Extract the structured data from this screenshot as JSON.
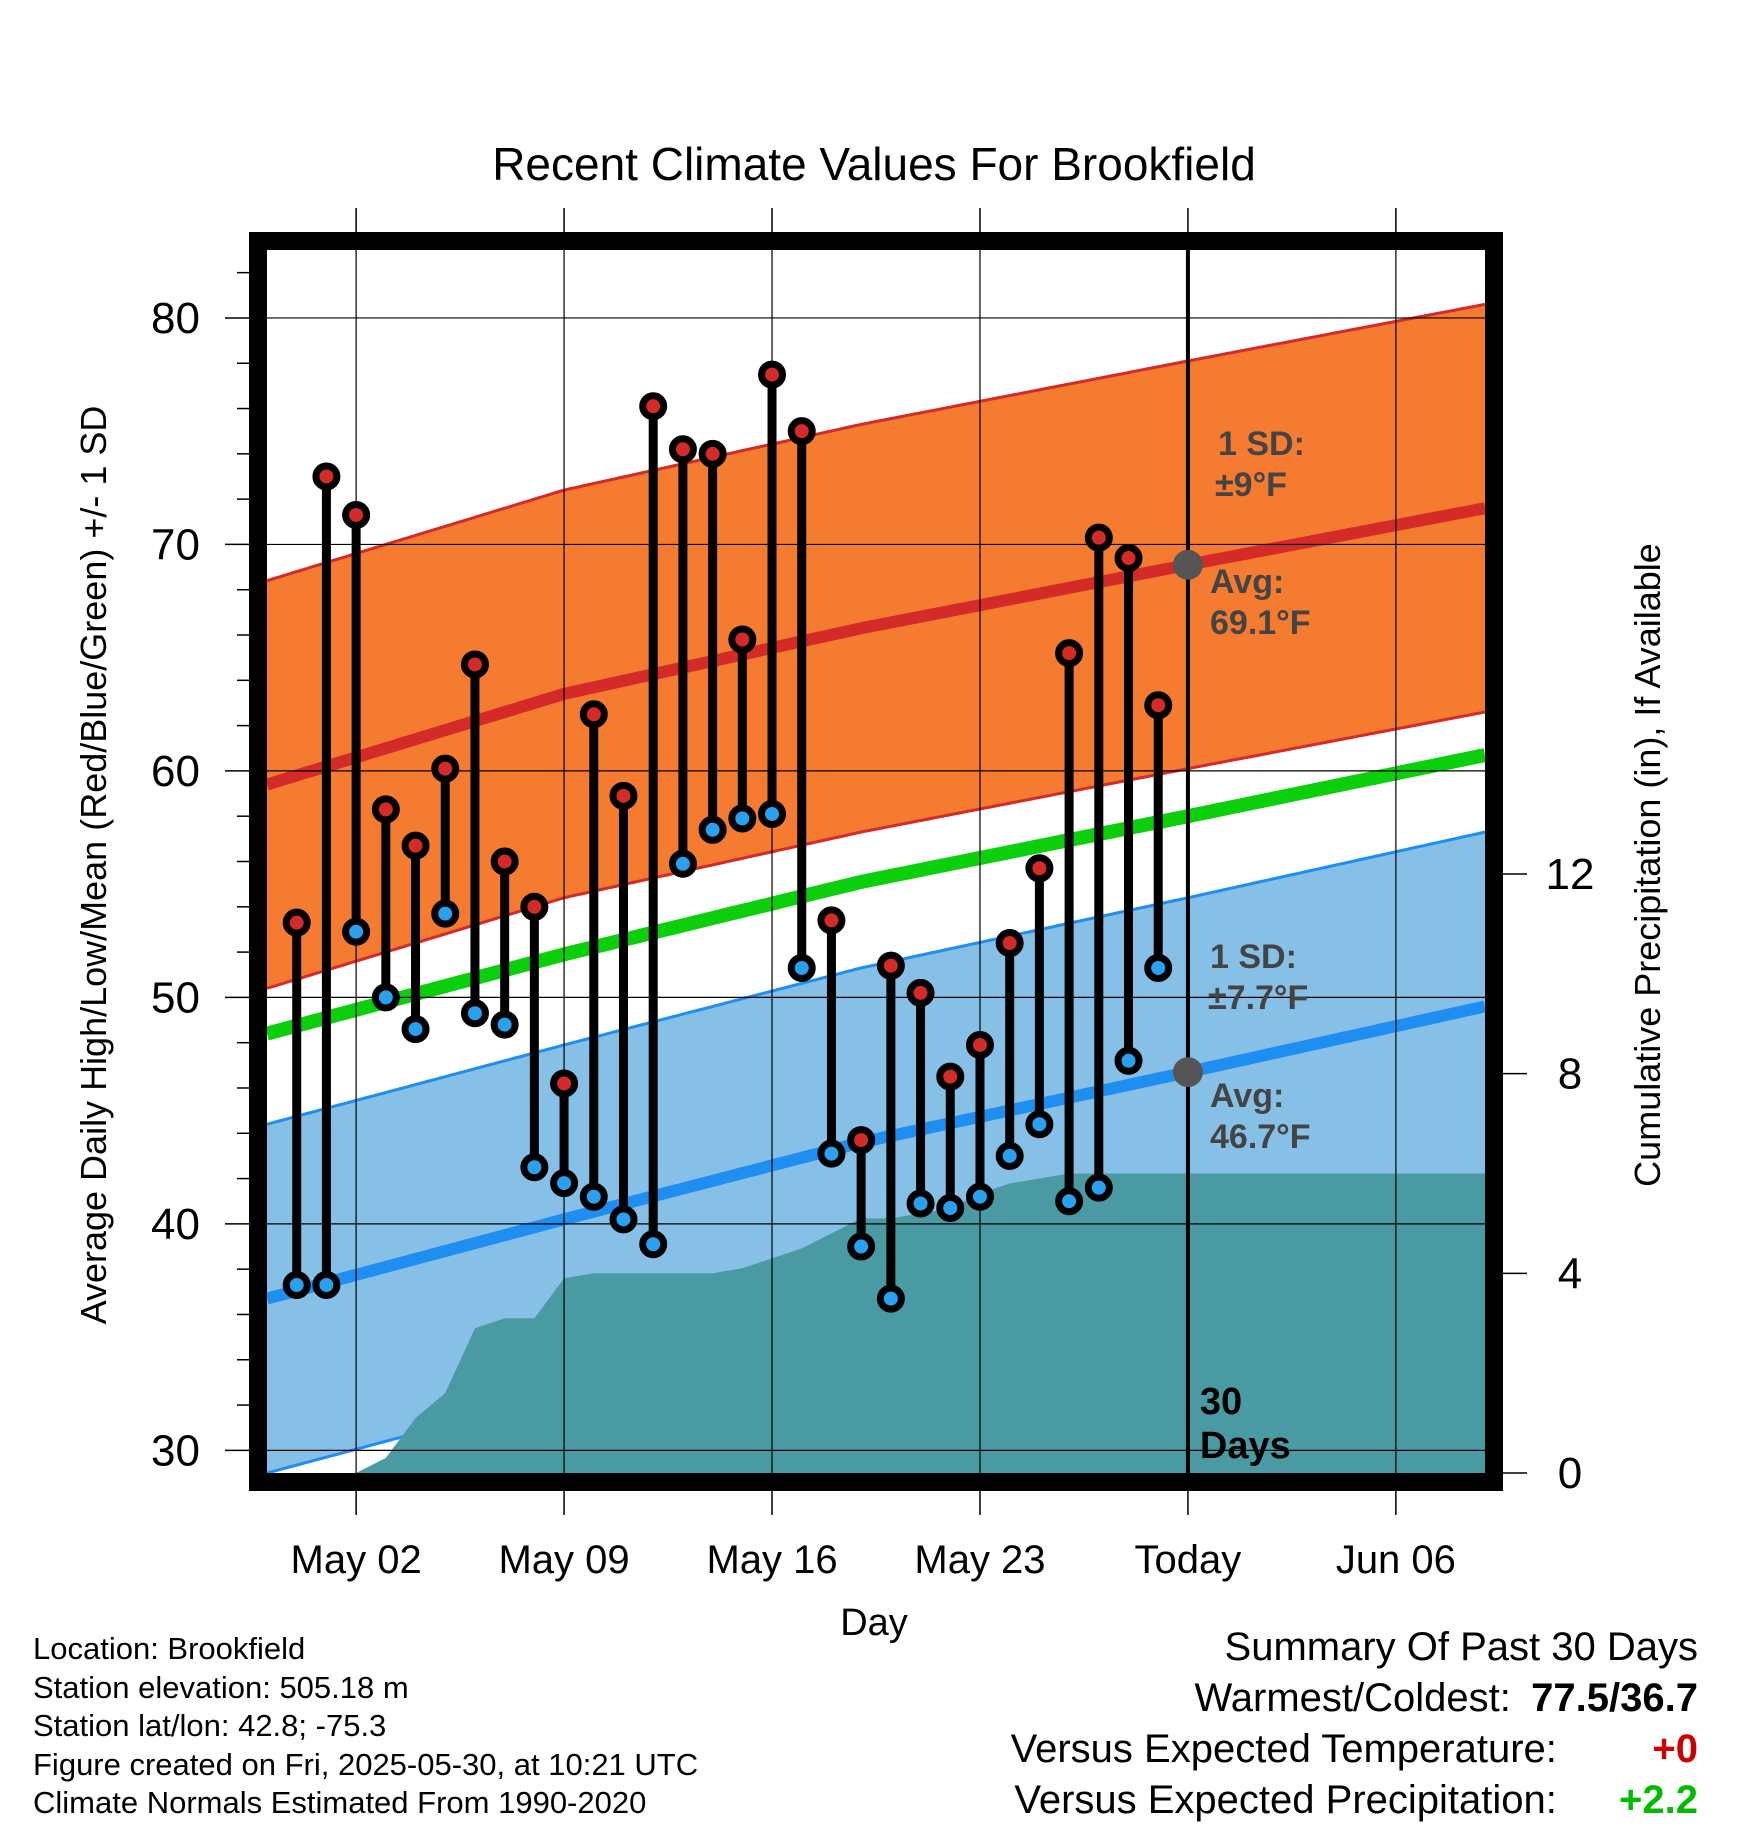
{
  "chart_data": {
    "type": "line",
    "title": "Recent Climate Values For Brookfield",
    "xlabel": "Day",
    "ylabel_left": "Average Daily High/Low/Mean (Red/Blue/Green) +/- 1 SD",
    "ylabel_right": "Cumulative Precipitation (in), If Available",
    "ylim_left": [
      29,
      83
    ],
    "ylim_right": [
      0,
      24.5
    ],
    "y_ticks_left": [
      30,
      40,
      50,
      60,
      70,
      80
    ],
    "y_ticks_right": [
      0,
      4,
      8,
      12
    ],
    "x_range_days": [
      "2025-04-29",
      "2025-06-09"
    ],
    "x_ticks": [
      {
        "date": "2025-05-02",
        "label": "May 02"
      },
      {
        "date": "2025-05-09",
        "label": "May 09"
      },
      {
        "date": "2025-05-16",
        "label": "May 16"
      },
      {
        "date": "2025-05-23",
        "label": "May 23"
      },
      {
        "date": "2025-05-30",
        "label": "Today"
      },
      {
        "date": "2025-06-06",
        "label": "Jun 06"
      }
    ],
    "grid": true,
    "today": "2025-05-30",
    "today_label": "30\nDays",
    "normals": {
      "dates": [
        "2025-04-29",
        "2025-05-09",
        "2025-05-19",
        "2025-05-30",
        "2025-06-09"
      ],
      "high_avg": [
        59.4,
        63.4,
        66.3,
        69.1,
        71.6
      ],
      "high_sd": 9,
      "low_avg": [
        36.7,
        40.2,
        43.6,
        46.7,
        49.6
      ],
      "low_sd": 7.7,
      "mean_avg": [
        48.4,
        51.9,
        55.1,
        58.0,
        60.7
      ]
    },
    "annotations": {
      "high_sd_label": "1 SD:",
      "high_sd_value": "±9°F",
      "high_avg_label": "Avg:",
      "high_avg_value": "69.1°F",
      "low_sd_label": "1 SD:",
      "low_sd_value": "±7.7°F",
      "low_avg_label": "Avg:",
      "low_avg_value": "46.7°F"
    },
    "observed": {
      "dates": [
        "2025-04-30",
        "2025-05-01",
        "2025-05-02",
        "2025-05-03",
        "2025-05-04",
        "2025-05-05",
        "2025-05-06",
        "2025-05-07",
        "2025-05-08",
        "2025-05-09",
        "2025-05-10",
        "2025-05-11",
        "2025-05-12",
        "2025-05-13",
        "2025-05-14",
        "2025-05-15",
        "2025-05-16",
        "2025-05-17",
        "2025-05-18",
        "2025-05-19",
        "2025-05-20",
        "2025-05-21",
        "2025-05-22",
        "2025-05-23",
        "2025-05-24",
        "2025-05-25",
        "2025-05-26",
        "2025-05-27",
        "2025-05-28",
        "2025-05-29"
      ],
      "high": [
        53.3,
        73.0,
        71.3,
        58.3,
        56.7,
        60.1,
        64.7,
        56.0,
        54.0,
        46.2,
        62.5,
        58.9,
        76.1,
        74.2,
        74.0,
        65.8,
        77.5,
        75.0,
        53.4,
        43.7,
        51.4,
        50.2,
        46.5,
        47.9,
        52.4,
        55.7,
        65.2,
        70.3,
        69.4,
        62.9
      ],
      "low": [
        37.3,
        37.3,
        52.9,
        50.0,
        48.6,
        53.7,
        49.3,
        48.8,
        42.5,
        41.8,
        41.2,
        40.2,
        39.1,
        55.9,
        57.4,
        57.9,
        58.1,
        51.3,
        43.1,
        39.0,
        36.7,
        40.9,
        40.7,
        41.2,
        43.0,
        44.4,
        41.0,
        41.6,
        47.2,
        51.3
      ]
    },
    "precip_cumulative": {
      "dates": [
        "2025-05-01",
        "2025-05-02",
        "2025-05-03",
        "2025-05-04",
        "2025-05-05",
        "2025-05-06",
        "2025-05-07",
        "2025-05-08",
        "2025-05-09",
        "2025-05-10",
        "2025-05-11",
        "2025-05-12",
        "2025-05-13",
        "2025-05-14",
        "2025-05-15",
        "2025-05-16",
        "2025-05-17",
        "2025-05-18",
        "2025-05-19",
        "2025-05-20",
        "2025-05-21",
        "2025-05-22",
        "2025-05-23",
        "2025-05-24",
        "2025-05-25",
        "2025-05-26",
        "2025-05-27",
        "2025-05-28",
        "2025-05-29",
        "2025-05-30",
        "2025-06-09"
      ],
      "values": [
        0.0,
        0.0,
        0.3,
        1.1,
        1.6,
        2.9,
        3.1,
        3.1,
        3.9,
        4.0,
        4.0,
        4.0,
        4.0,
        4.0,
        4.1,
        4.3,
        4.5,
        4.8,
        5.1,
        5.1,
        5.2,
        5.3,
        5.6,
        5.8,
        5.9,
        6.0,
        6.0,
        6.0,
        6.0,
        6.0,
        6.0
      ]
    },
    "colors": {
      "high_band": "#f47b30",
      "high_line": "#d42a28",
      "low_band": "#86c0e6",
      "low_line": "#1e8ef0",
      "mean_line": "#0ccf0c",
      "precip": "#4a9aa4",
      "high_marker": "#d42a28",
      "low_marker": "#2aa0f0",
      "annotation": "#444444"
    }
  },
  "footer": {
    "location": "Location: Brookfield",
    "elevation": "Station elevation: 505.18 m",
    "latlon": "Station lat/lon: 42.8; -75.3",
    "created": "Figure created on Fri, 2025-05-30, at 10:21 UTC",
    "normals": "Climate Normals Estimated From 1990-2020"
  },
  "summary": {
    "title": "Summary Of Past 30 Days",
    "warm_cold_label": "Warmest/Coldest:",
    "warm_cold_value": "77.5/36.7",
    "temp_label": "Versus Expected Temperature:",
    "temp_value": "+0",
    "temp_color": "#cc0000",
    "precip_label": "Versus Expected Precipitation:",
    "precip_value": "+2.2",
    "precip_color": "#00bb00"
  }
}
